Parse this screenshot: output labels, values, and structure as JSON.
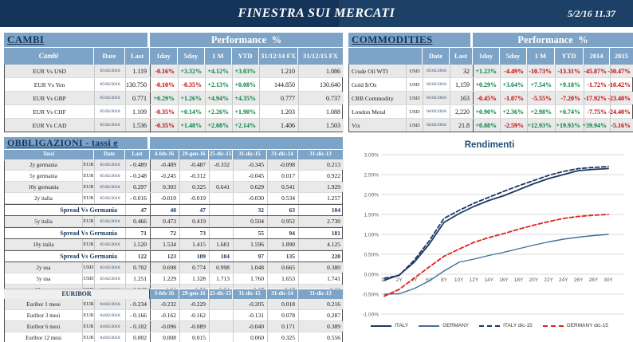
{
  "header": {
    "title": "FINESTRA SUI MERCATI",
    "datetime": "5/2/16 11.37"
  },
  "colors": {
    "header_navy": "#17365D",
    "panel_blue": "#7DA3C6",
    "row_shade": "#E9E9E9",
    "negative": "#C00000",
    "positive": "#008040",
    "italy": "#1F3864",
    "germany": "#41719C",
    "germany_dec": "#E0231C",
    "chart_title": "#1F4E79"
  },
  "cambi": {
    "title": "CAMBI",
    "performance_label": "Performance  %",
    "columns": [
      "Cambi",
      "Date",
      "Last",
      "1day",
      "5day",
      "1 M",
      "YTD",
      "31/12/14 FX",
      "31/12/15  FX"
    ],
    "rows": [
      {
        "pair": "EUR Vs USD",
        "date": "05/02/2016",
        "last": "1.119",
        "perf": [
          "-0.16%",
          "+3.32%",
          "+4.12%",
          "+3.03%"
        ],
        "fx14": "1.210",
        "fx15": "1.086"
      },
      {
        "pair": "EUR Vs Yen",
        "date": "05/02/2016",
        "last": "130.750",
        "perf": [
          "-0.10%",
          "-0.35%",
          "+2.13%",
          "+0.08%"
        ],
        "fx14": "144.850",
        "fx15": "130.640"
      },
      {
        "pair": "EUR Vs GBP",
        "date": "05/02/2016",
        "last": "0.771",
        "perf": [
          "+0.29%",
          "+1.26%",
          "+4.94%",
          "+4.35%"
        ],
        "fx14": "0.777",
        "fx15": "0.737"
      },
      {
        "pair": "EUR Vs CHF",
        "date": "05/02/2016",
        "last": "1.109",
        "perf": [
          "-0.35%",
          "+0.14%",
          "+2.26%",
          "+1.90%"
        ],
        "fx14": "1.203",
        "fx15": "1.088"
      },
      {
        "pair": "EUR Vs CAD",
        "date": "05/02/2016",
        "last": "1.536",
        "perf": [
          "-0.35%",
          "+1.48%",
          "+2.08%",
          "+2.14%"
        ],
        "fx14": "1.406",
        "fx15": "1.503"
      }
    ]
  },
  "commodities": {
    "title": "COMMODITIES",
    "performance_label": "Performance  %",
    "columns": [
      "Date",
      "Last",
      "1day",
      "5day",
      "1 M",
      "YTD",
      "2014",
      "2015"
    ],
    "rows": [
      {
        "name": "Crude Oil WTI",
        "cur": "USD",
        "date": "05/02/2016",
        "last": "32",
        "perf": [
          "+1.23%",
          "-4.49%",
          "-10.73%",
          "-13.31%",
          "-45.87%",
          "-30.47%"
        ]
      },
      {
        "name": "Gold $/Oz",
        "cur": "USD",
        "date": "05/02/2016",
        "last": "1,159",
        "perf": [
          "+0.29%",
          "+3.64%",
          "+7.54%",
          "+9.18%",
          "-1.72%",
          "-10.42%"
        ]
      },
      {
        "name": "CRB Commodity",
        "cur": "USD",
        "date": "05/02/2016",
        "last": "163",
        "perf": [
          "-0.45%",
          "-1.07%",
          "-5.55%",
          "-7.20%",
          "-17.92%",
          "-23.40%"
        ]
      },
      {
        "name": "London Metal",
        "cur": "USD",
        "date": "04/02/2016",
        "last": "2,220",
        "perf": [
          "+0.90%",
          "+2.36%",
          "+2.98%",
          "+0.74%",
          "-7.75%",
          "-24.40%"
        ]
      },
      {
        "name": "Vix",
        "cur": "USD",
        "date": "04/02/2016",
        "last": "21.8",
        "perf": [
          "+0.88%",
          "-2.59%",
          "+12.93%",
          "+19.93%",
          "+39.94%",
          "-5.16%"
        ]
      }
    ]
  },
  "obbligazioni": {
    "title": "OBBLIGAZIONI - tassi e spread",
    "columns": [
      "Tassi",
      "Date",
      "Last",
      "4-feb-16",
      "29-gen-16",
      "25-dic-15",
      "31-dic-15",
      "31-dic-14",
      "31-dic-13"
    ],
    "shaded_rows": [
      0,
      2,
      5,
      7,
      9,
      11
    ],
    "rows": [
      {
        "type": "rate",
        "name": "2y germania",
        "cur": "EUR",
        "date": "05/02/2016",
        "last": "- 0.489",
        "values": [
          "-0.489",
          "-0.487",
          "-0.332",
          "-0.345",
          "-0.098",
          "0.213"
        ]
      },
      {
        "type": "rate",
        "name": "5y germania",
        "cur": "EUR",
        "date": "05/02/2016",
        "last": "- 0.248",
        "values": [
          "-0.245",
          "-0.312",
          "",
          "-0.045",
          "0.017",
          "0.922"
        ]
      },
      {
        "type": "rate",
        "name": "10y germania",
        "cur": "EUR",
        "date": "05/02/2016",
        "last": "0.297",
        "values": [
          "0.303",
          "0.325",
          "0.641",
          "0.629",
          "0.541",
          "1.929"
        ]
      },
      {
        "type": "rate",
        "name": "2y italia",
        "cur": "EUR",
        "date": "05/02/2016",
        "last": "- 0.016",
        "values": [
          "-0.010",
          "-0.019",
          "",
          "-0.030",
          "0.534",
          "1.257"
        ]
      },
      {
        "type": "spread",
        "name": "Spread Vs Germania",
        "last": "47",
        "values": [
          "48",
          "47",
          "",
          "32",
          "63",
          "104"
        ]
      },
      {
        "type": "rate",
        "name": "5y italia",
        "cur": "EUR",
        "date": "05/02/2016",
        "last": "0.466",
        "values": [
          "0.473",
          "0.419",
          "",
          "0.504",
          "0.952",
          "2.730"
        ]
      },
      {
        "type": "spread",
        "name": "Spread Vs Germania",
        "last": "71",
        "values": [
          "72",
          "73",
          "",
          "55",
          "94",
          "181"
        ]
      },
      {
        "type": "rate",
        "name": "10y italia",
        "cur": "EUR",
        "date": "05/02/2016",
        "last": "1.520",
        "values": [
          "1.534",
          "1.415",
          "1.681",
          "1.596",
          "1.890",
          "4.125"
        ]
      },
      {
        "type": "spread",
        "name": "Spread Vs Germania",
        "last": "122",
        "values": [
          "123",
          "109",
          "104",
          "97",
          "135",
          "220"
        ]
      },
      {
        "type": "rate",
        "name": "2y usa",
        "cur": "USD",
        "date": "05/02/2016",
        "last": "0.702",
        "values": [
          "0.698",
          "0.774",
          "0.998",
          "1.048",
          "0.665",
          "0.380"
        ]
      },
      {
        "type": "rate",
        "name": "5y usa",
        "cur": "USD",
        "date": "05/02/2016",
        "last": "1.251",
        "values": [
          "1.229",
          "1.328",
          "1.713",
          "1.760",
          "1.653",
          "1.741"
        ]
      },
      {
        "type": "rate",
        "name": "10y usa",
        "cur": "USD",
        "date": "05/02/2016",
        "last": "1.848",
        "values": [
          "1.84",
          "1.92",
          "2.24",
          "2.27",
          "2.17",
          "3.03"
        ]
      }
    ]
  },
  "euribor": {
    "label": "EURIBOR",
    "columns": [
      "3-feb-16",
      "29-gen-16",
      "25-dic-15",
      "31-dic-15",
      "31-dic-14",
      "31-dic-13"
    ],
    "shaded_rows": [
      0,
      2
    ],
    "rows": [
      {
        "name": "Euribor 1 mese",
        "cur": "EUR",
        "date": "04/02/2016",
        "last": "- 0.234",
        "values": [
          "-0.232",
          "-0.229",
          "",
          "-0.205",
          "0.018",
          "0.216"
        ]
      },
      {
        "name": "Euribor 3 mesi",
        "cur": "EUR",
        "date": "04/02/2016",
        "last": "- 0.166",
        "values": [
          "-0.162",
          "-0.162",
          "",
          "-0.131",
          "0.078",
          "0.287"
        ]
      },
      {
        "name": "Euribor 6 mesi",
        "cur": "EUR",
        "date": "04/02/2016",
        "last": "- 0.102",
        "values": [
          "-0.096",
          "-0.089",
          "",
          "-0.040",
          "0.171",
          "0.389"
        ]
      },
      {
        "name": "Euribor 12 mesi",
        "cur": "EUR",
        "date": "04/02/2016",
        "last": "0.002",
        "values": [
          "0.008",
          "0.015",
          "",
          "0.060",
          "0.325",
          "0.556"
        ]
      }
    ]
  },
  "chart_data": {
    "type": "line",
    "title": "Rendimenti",
    "categories": [
      "1Y",
      "2Y",
      "4Y",
      "6Y",
      "8Y",
      "10Y",
      "12Y",
      "14Y",
      "16Y",
      "18Y",
      "20Y",
      "22Y",
      "24Y",
      "26Y",
      "28Y",
      "30Y"
    ],
    "ylim": [
      -1.0,
      3.0
    ],
    "ytick_step": 0.5,
    "ytick_format": "percent",
    "grid": true,
    "legend_position": "bottom",
    "series": [
      {
        "name": "ITALY",
        "color": "#1F3864",
        "dash": "solid",
        "width": 1.8,
        "values": [
          -0.15,
          -0.02,
          0.3,
          0.75,
          1.3,
          1.52,
          1.7,
          1.85,
          1.97,
          2.12,
          2.27,
          2.4,
          2.5,
          2.6,
          2.63,
          2.65
        ]
      },
      {
        "name": "GERMANY",
        "color": "#41719C",
        "dash": "solid",
        "width": 1.4,
        "values": [
          -0.5,
          -0.49,
          -0.36,
          -0.17,
          0.08,
          0.3,
          0.38,
          0.47,
          0.55,
          0.64,
          0.73,
          0.81,
          0.88,
          0.93,
          0.97,
          1.0
        ]
      },
      {
        "name": "ITALY dic-15",
        "color": "#1F3864",
        "dash": "dashed",
        "width": 1.8,
        "values": [
          -0.1,
          -0.03,
          0.35,
          0.83,
          1.4,
          1.6,
          1.78,
          1.93,
          2.08,
          2.22,
          2.35,
          2.48,
          2.58,
          2.65,
          2.68,
          2.7
        ]
      },
      {
        "name": "GERMANY dic-15",
        "color": "#E0231C",
        "dash": "dashed",
        "width": 1.8,
        "values": [
          -0.55,
          -0.38,
          -0.1,
          0.18,
          0.45,
          0.63,
          0.8,
          0.92,
          1.02,
          1.13,
          1.23,
          1.32,
          1.4,
          1.45,
          1.48,
          1.5
        ]
      }
    ]
  }
}
